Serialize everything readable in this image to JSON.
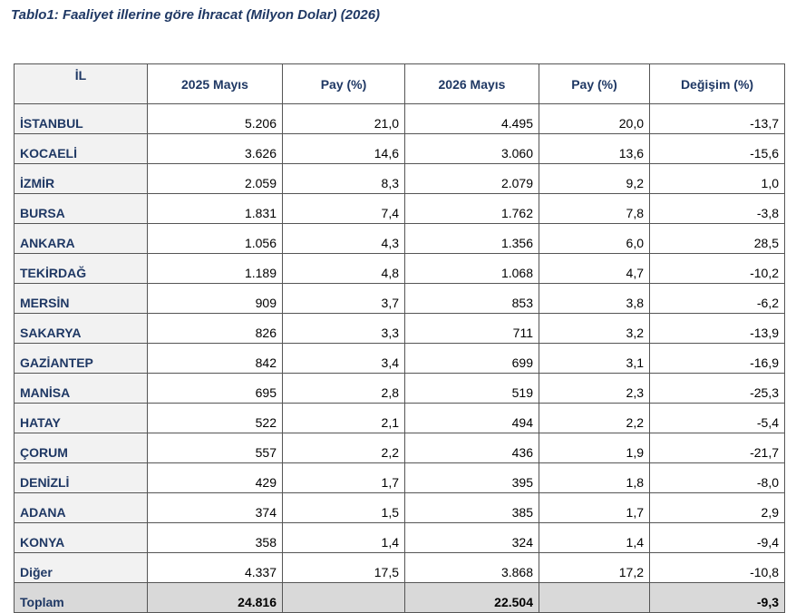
{
  "title": "Tablo1: Faaliyet illerine göre İhracat (Milyon Dolar) (2026)",
  "table": {
    "header": [
      "İL",
      "2025 Mayıs",
      "Pay  (%)",
      "2026 Mayıs",
      "Pay  (%)",
      "Değişim (%)"
    ],
    "rows": [
      [
        "İSTANBUL",
        "5.206",
        "21,0",
        "4.495",
        "20,0",
        "-13,7"
      ],
      [
        "KOCAELİ",
        "3.626",
        "14,6",
        "3.060",
        "13,6",
        "-15,6"
      ],
      [
        "İZMİR",
        "2.059",
        "8,3",
        "2.079",
        "9,2",
        "1,0"
      ],
      [
        "BURSA",
        "1.831",
        "7,4",
        "1.762",
        "7,8",
        "-3,8"
      ],
      [
        "ANKARA",
        "1.056",
        "4,3",
        "1.356",
        "6,0",
        "28,5"
      ],
      [
        "TEKİRDAĞ",
        "1.189",
        "4,8",
        "1.068",
        "4,7",
        "-10,2"
      ],
      [
        "MERSİN",
        "909",
        "3,7",
        "853",
        "3,8",
        "-6,2"
      ],
      [
        "SAKARYA",
        "826",
        "3,3",
        "711",
        "3,2",
        "-13,9"
      ],
      [
        "GAZİANTEP",
        "842",
        "3,4",
        "699",
        "3,1",
        "-16,9"
      ],
      [
        "MANİSA",
        "695",
        "2,8",
        "519",
        "2,3",
        "-25,3"
      ],
      [
        "HATAY",
        "522",
        "2,1",
        "494",
        "2,2",
        "-5,4"
      ],
      [
        "ÇORUM",
        "557",
        "2,2",
        "436",
        "1,9",
        "-21,7"
      ],
      [
        "DENİZLİ",
        "429",
        "1,7",
        "395",
        "1,8",
        "-8,0"
      ],
      [
        "ADANA",
        "374",
        "1,5",
        "385",
        "1,7",
        "2,9"
      ],
      [
        "KONYA",
        "358",
        "1,4",
        "324",
        "1,4",
        "-9,4"
      ],
      [
        "Diğer",
        "4.337",
        "17,5",
        "3.868",
        "17,2",
        "-10,8"
      ]
    ],
    "total": {
      "label": "Toplam",
      "value_2025": "24.816",
      "value_2026": "22.504",
      "change": "-9,3"
    }
  }
}
